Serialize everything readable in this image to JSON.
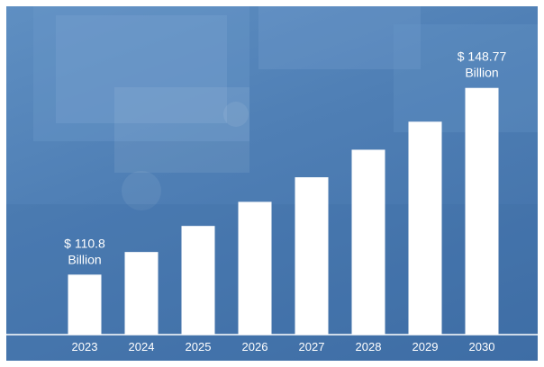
{
  "colors": {
    "background": "#4f7fb5",
    "bar": "#ffffff",
    "text": "#ffffff"
  },
  "chart_data": {
    "type": "bar",
    "title": "",
    "xlabel": "",
    "ylabel": "",
    "categories": [
      "2023",
      "2024",
      "2025",
      "2026",
      "2027",
      "2028",
      "2029",
      "2030"
    ],
    "values": [
      110.8,
      115.4,
      120.7,
      125.6,
      130.6,
      136.2,
      141.9,
      148.77
    ],
    "ylim": [
      98.6,
      150
    ],
    "grid": false,
    "legend": "none",
    "annotations": [
      {
        "index": 0,
        "prefix": "$ 110.8",
        "suffix": "Billion"
      },
      {
        "index": 7,
        "prefix": "$ 148.77",
        "suffix": "Billion"
      }
    ]
  }
}
